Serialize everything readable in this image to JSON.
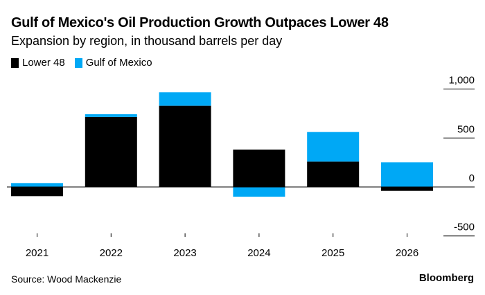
{
  "chart_data": {
    "type": "bar",
    "stacked": true,
    "title": "Gulf of Mexico's Oil Production Growth Outpaces Lower 48",
    "subtitle": "Expansion by region, in thousand barrels per day",
    "categories": [
      "2021",
      "2022",
      "2023",
      "2024",
      "2025",
      "2026"
    ],
    "series": [
      {
        "name": "Lower 48",
        "color": "#000000",
        "values": [
          -94,
          715,
          830,
          382,
          259,
          -40
        ]
      },
      {
        "name": "Gulf of Mexico",
        "color": "#00a8f5",
        "values": [
          40,
          28,
          137,
          -99,
          302,
          252
        ]
      }
    ],
    "ylim": [
      -500,
      1000
    ],
    "yticks": [
      1000,
      500,
      0,
      -500
    ],
    "ytick_labels": [
      "1,000",
      "500",
      "0",
      "-500"
    ],
    "yaxis_position": "right",
    "legend_position": "top-left",
    "source": "Source: Wood Mackenzie",
    "brand": "Bloomberg"
  }
}
